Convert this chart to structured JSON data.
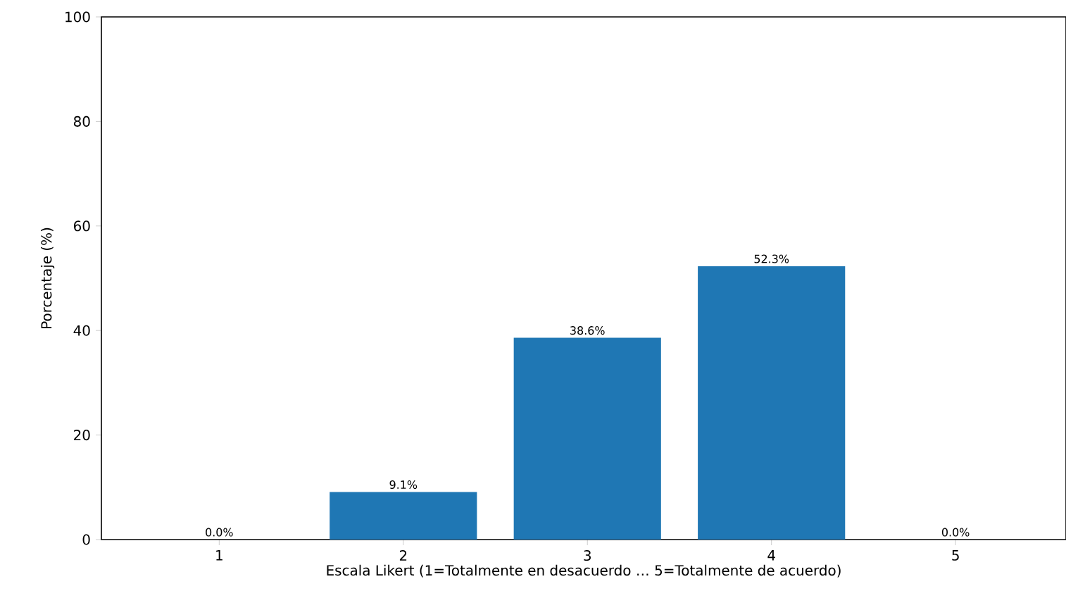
{
  "chart_data": {
    "type": "bar",
    "xlabel": "Escala Likert (1=Totalmente en desacuerdo … 5=Totalmente de acuerdo)",
    "ylabel": "Porcentaje (%)",
    "categories": [
      "1",
      "2",
      "3",
      "4",
      "5"
    ],
    "values": [
      0.0,
      9.1,
      38.6,
      52.3,
      0.0
    ],
    "value_labels": [
      "0.0%",
      "9.1%",
      "38.6%",
      "52.3%",
      "0.0%"
    ],
    "color": "#1f77b4",
    "ylim": [
      0,
      100
    ],
    "yticks": [
      0,
      20,
      40,
      60,
      80,
      100
    ],
    "grid": false
  }
}
